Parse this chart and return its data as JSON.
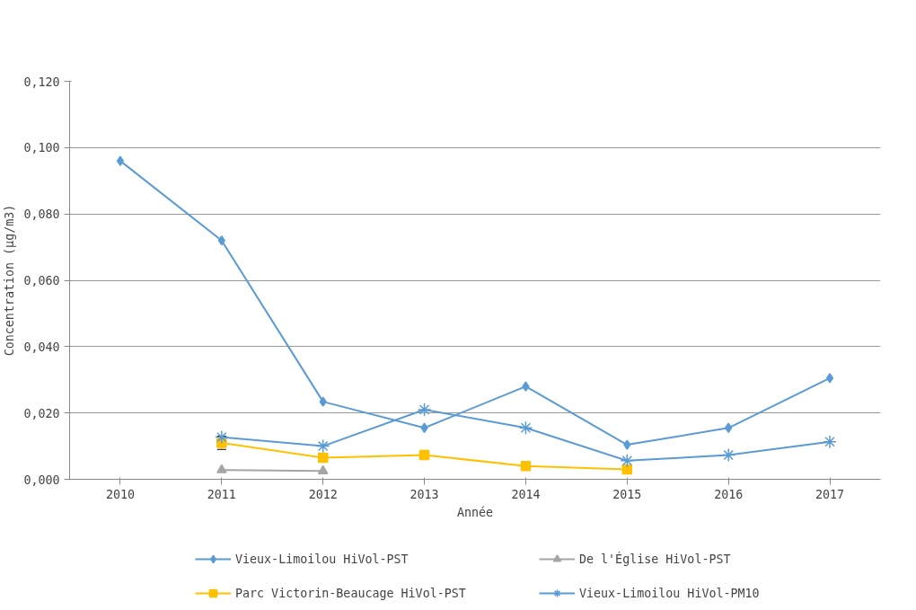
{
  "chart_data": {
    "type": "line",
    "xlabel": "Année",
    "ylabel": "Concentration (µg/m3)",
    "categories": [
      "2010",
      "2011",
      "2012",
      "2013",
      "2014",
      "2015",
      "2016",
      "2017"
    ],
    "ylim": [
      0,
      0.12
    ],
    "yticks": [
      {
        "value": 0,
        "label": "0,000"
      },
      {
        "value": 0.02,
        "label": "0,020"
      },
      {
        "value": 0.04,
        "label": "0,040"
      },
      {
        "value": 0.06,
        "label": "0,060"
      },
      {
        "value": 0.08,
        "label": "0,080"
      },
      {
        "value": 0.1,
        "label": "0,100"
      },
      {
        "value": 0.12,
        "label": "0,120"
      }
    ],
    "grid": "y",
    "legend": "bottom",
    "series": [
      {
        "name": "Vieux-Limoilou HiVol-PST",
        "color": "#5b9bd5",
        "marker": "diamond",
        "values": [
          0.096,
          0.072,
          0.0234,
          0.0155,
          0.028,
          0.0104,
          0.0155,
          0.0305
        ]
      },
      {
        "name": "De l'Église HiVol-PST",
        "color": "#a5a5a5",
        "marker": "triangle",
        "values": [
          null,
          0.0028,
          0.0025,
          null,
          null,
          null,
          null,
          null
        ]
      },
      {
        "name": "Parc Victorin-Beaucage HiVol-PST",
        "color": "#ffc000",
        "marker": "square",
        "values": [
          null,
          0.011,
          0.0065,
          0.0073,
          0.004,
          0.003,
          null,
          null
        ],
        "errors": [
          null,
          0.002,
          null,
          null,
          null,
          null,
          null,
          null
        ]
      },
      {
        "name": "Vieux-Limoilou HiVol-PM10",
        "color": "#5b9bd5",
        "marker": "cross",
        "values": [
          null,
          0.0127,
          0.01,
          0.021,
          0.0155,
          0.0056,
          0.0073,
          0.0113
        ]
      }
    ]
  }
}
